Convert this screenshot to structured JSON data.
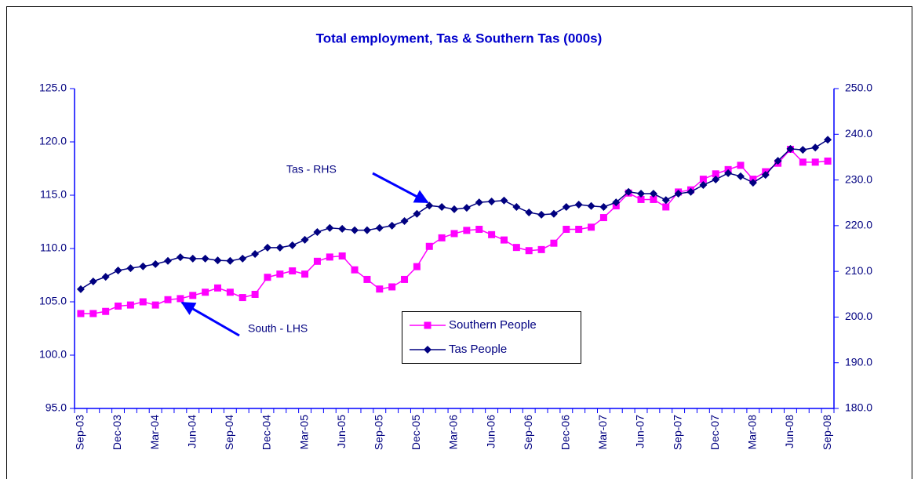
{
  "chart_data": {
    "type": "line",
    "title": "Total employment, Tas & Southern Tas (000s)",
    "categories": [
      "Sep-03",
      null,
      null,
      "Dec-03",
      null,
      null,
      "Mar-04",
      null,
      null,
      "Jun-04",
      null,
      null,
      "Sep-04",
      null,
      null,
      "Dec-04",
      null,
      null,
      "Mar-05",
      null,
      null,
      "Jun-05",
      null,
      null,
      "Sep-05",
      null,
      null,
      "Dec-05",
      null,
      null,
      "Mar-06",
      null,
      null,
      "Jun-06",
      null,
      null,
      "Sep-06",
      null,
      null,
      "Dec-06",
      null,
      null,
      "Mar-07",
      null,
      null,
      "Jun-07",
      null,
      null,
      "Sep-07",
      null,
      null,
      "Dec-07",
      null,
      null,
      "Mar-08",
      null,
      null,
      "Jun-08",
      null,
      null,
      "Sep-08"
    ],
    "series": [
      {
        "name": "Southern People",
        "color": "#ff00ff",
        "marker": "square",
        "axis": "y",
        "values": [
          103.9,
          103.9,
          104.1,
          104.6,
          104.7,
          105.0,
          104.7,
          105.2,
          105.3,
          105.6,
          105.9,
          106.3,
          105.9,
          105.4,
          105.7,
          107.3,
          107.6,
          107.9,
          107.6,
          108.8,
          109.2,
          109.3,
          108.0,
          107.1,
          106.2,
          106.4,
          107.1,
          108.3,
          110.2,
          111.0,
          111.4,
          111.7,
          111.8,
          111.3,
          110.8,
          110.1,
          109.8,
          109.9,
          110.5,
          111.8,
          111.8,
          112.0,
          112.9,
          114.0,
          115.2,
          114.6,
          114.6,
          113.9,
          115.3,
          115.5,
          116.5,
          117.0,
          117.4,
          117.8,
          116.5,
          117.2,
          118.0,
          119.3,
          118.1,
          118.1,
          118.2
        ]
      },
      {
        "name": "Tas People",
        "color": "#000080",
        "marker": "diamond",
        "axis": "y2",
        "values": [
          206.1,
          207.8,
          208.8,
          210.2,
          210.7,
          211.1,
          211.6,
          212.3,
          213.1,
          212.8,
          212.8,
          212.4,
          212.3,
          212.8,
          213.8,
          215.2,
          215.2,
          215.7,
          216.9,
          218.6,
          219.5,
          219.3,
          219.0,
          219.0,
          219.5,
          220.0,
          221.0,
          222.6,
          224.4,
          224.1,
          223.6,
          223.9,
          225.1,
          225.3,
          225.5,
          224.1,
          222.9,
          222.4,
          222.6,
          224.1,
          224.6,
          224.3,
          224.1,
          225.1,
          227.4,
          227.0,
          227.0,
          225.6,
          227.0,
          227.4,
          228.9,
          230.1,
          231.5,
          230.8,
          229.4,
          231.1,
          234.2,
          236.8,
          236.6,
          237.1,
          238.8
        ]
      }
    ],
    "ylim": [
      95,
      125
    ],
    "yticks": [
      {
        "value": 95,
        "label": "95.0"
      },
      {
        "value": 100,
        "label": "100.0"
      },
      {
        "value": 105,
        "label": "105.0"
      },
      {
        "value": 110,
        "label": "110.0"
      },
      {
        "value": 115,
        "label": "115.0"
      },
      {
        "value": 120,
        "label": "120.0"
      },
      {
        "value": 125,
        "label": "125.0"
      }
    ],
    "y2lim": [
      180,
      250
    ],
    "y2ticks": [
      {
        "value": 180,
        "label": "180.0"
      },
      {
        "value": 190,
        "label": "190.0"
      },
      {
        "value": 200,
        "label": "200.0"
      },
      {
        "value": 210,
        "label": "210.0"
      },
      {
        "value": 220,
        "label": "220.0"
      },
      {
        "value": 230,
        "label": "230.0"
      },
      {
        "value": 240,
        "label": "240.0"
      },
      {
        "value": 250,
        "label": "250.0"
      }
    ],
    "grid": false,
    "annotations": [
      {
        "text": "Tas - RHS"
      },
      {
        "text": "South - LHS"
      }
    ]
  }
}
